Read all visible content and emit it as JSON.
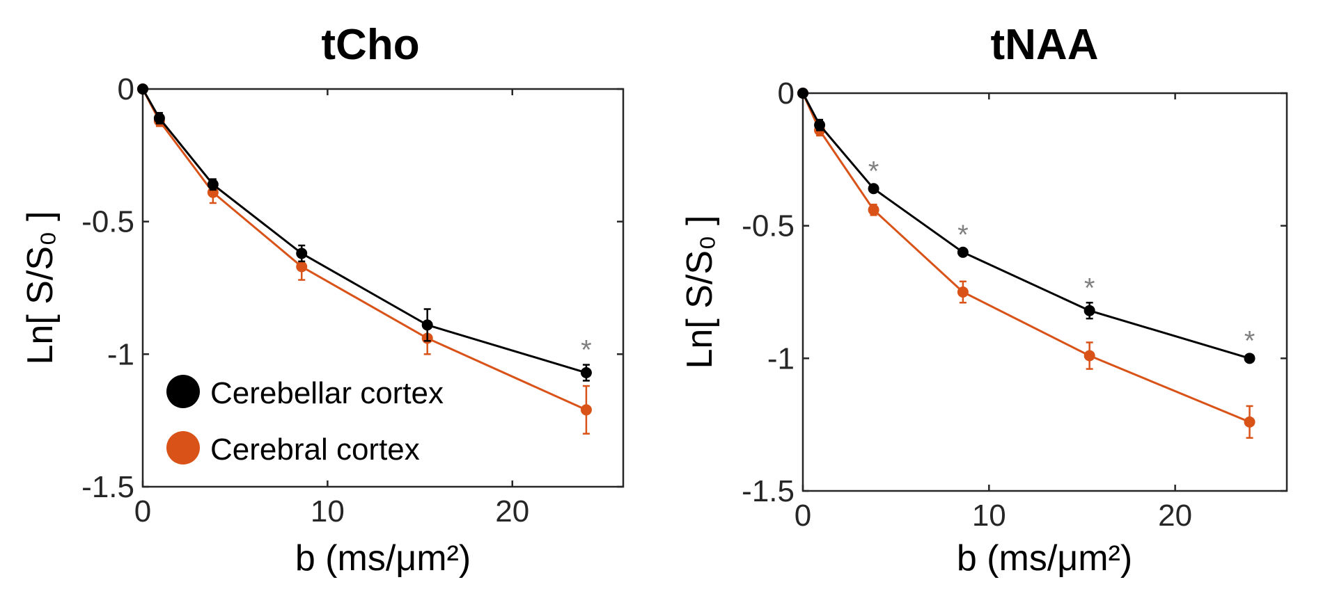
{
  "colors": {
    "cerebellar": "#000000",
    "cerebral": "#D95319",
    "significance": "#808080",
    "axis": "#262626"
  },
  "legend": {
    "items": [
      {
        "label": "Cerebellar cortex",
        "color": "#000000"
      },
      {
        "label": "Cerebral cortex",
        "color": "#D95319"
      }
    ]
  },
  "chart_data": [
    {
      "type": "line",
      "title": "tCho",
      "xlabel": "b (ms/μm²)",
      "ylabel": "Ln[ S/S₀ ]",
      "xlim": [
        0,
        26
      ],
      "ylim": [
        -1.5,
        0
      ],
      "xticks": [
        "0",
        "10",
        "20"
      ],
      "yticks": [
        "0",
        "-0.5",
        "-1",
        "-1.5"
      ],
      "grid": false,
      "legend_position": "bottom-left",
      "x": [
        0,
        0.9,
        3.8,
        8.6,
        15.4,
        24
      ],
      "series": [
        {
          "name": "Cerebellar cortex",
          "values": [
            0,
            -0.11,
            -0.36,
            -0.62,
            -0.89,
            -1.07
          ],
          "errors": [
            0,
            0.02,
            0.02,
            0.03,
            0.06,
            0.03
          ]
        },
        {
          "name": "Cerebral cortex",
          "values": [
            0,
            -0.12,
            -0.39,
            -0.67,
            -0.94,
            -1.21
          ],
          "errors": [
            0,
            0.02,
            0.04,
            0.05,
            0.06,
            0.09
          ]
        }
      ],
      "significant": [
        false,
        false,
        false,
        false,
        false,
        true
      ],
      "significance_marker": "*"
    },
    {
      "type": "line",
      "title": "tNAA",
      "xlabel": "b (ms/μm²)",
      "ylabel": "Ln[ S/S₀ ]",
      "xlim": [
        0,
        26
      ],
      "ylim": [
        -1.5,
        0
      ],
      "xticks": [
        "0",
        "10",
        "20"
      ],
      "yticks": [
        "0",
        "-0.5",
        "-1",
        "-1.5"
      ],
      "grid": false,
      "x": [
        0,
        0.9,
        3.8,
        8.6,
        15.4,
        24
      ],
      "series": [
        {
          "name": "Cerebellar cortex",
          "values": [
            0,
            -0.12,
            -0.36,
            -0.6,
            -0.82,
            -1.0
          ],
          "errors": [
            0,
            0.02,
            0.01,
            0.01,
            0.03,
            0.01
          ]
        },
        {
          "name": "Cerebral cortex",
          "values": [
            0,
            -0.14,
            -0.44,
            -0.75,
            -0.99,
            -1.24
          ],
          "errors": [
            0,
            0.02,
            0.02,
            0.04,
            0.05,
            0.06
          ]
        }
      ],
      "significant": [
        false,
        false,
        true,
        true,
        true,
        true
      ],
      "significance_marker": "*"
    }
  ]
}
